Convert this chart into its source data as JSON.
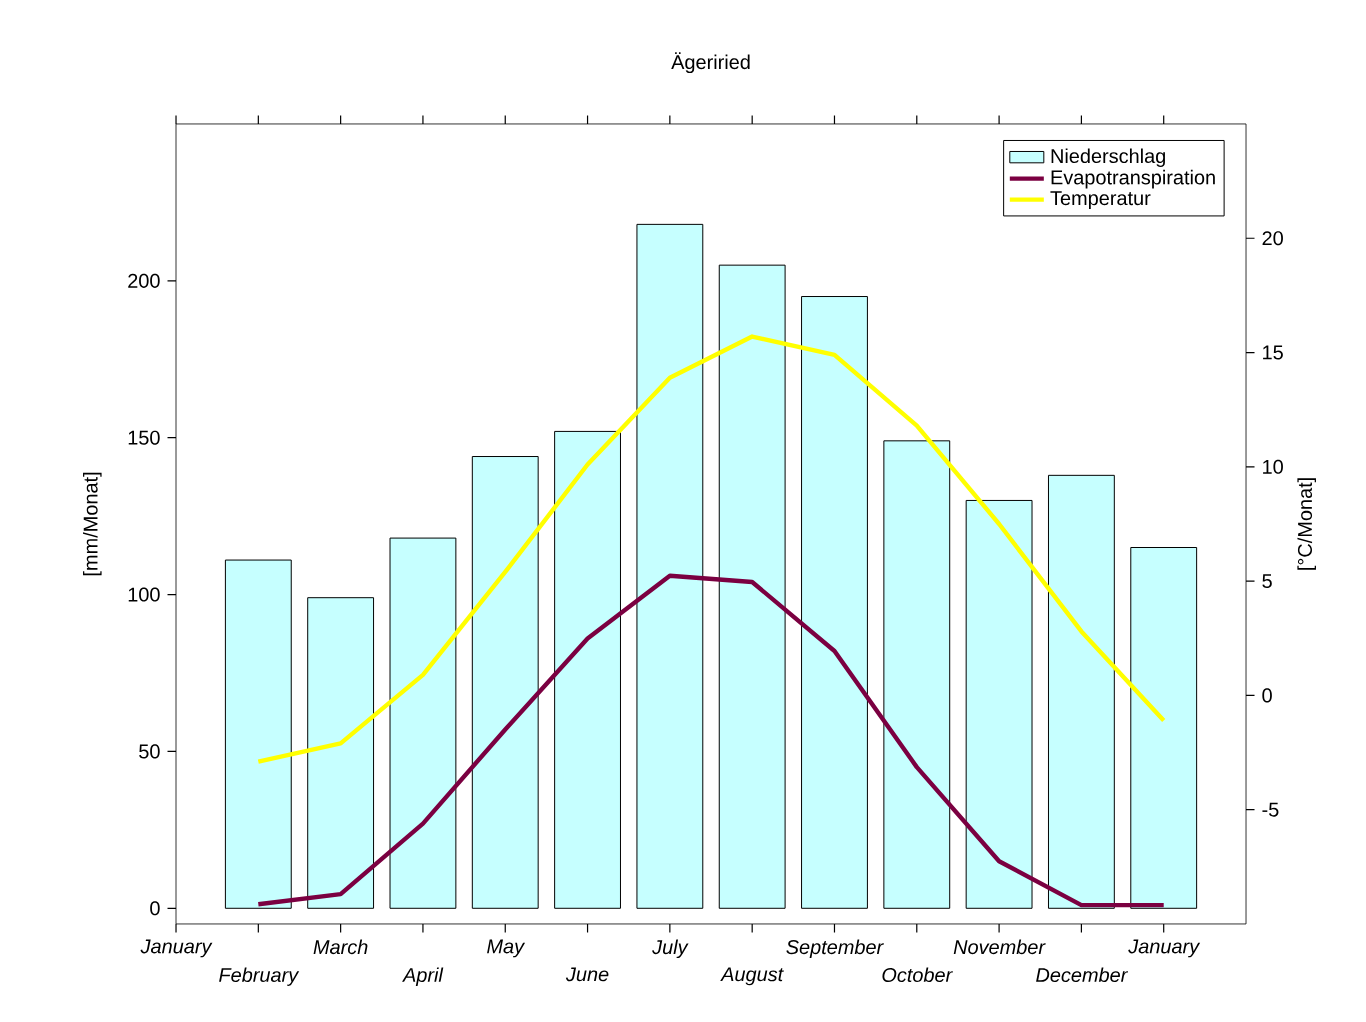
{
  "chart_data": {
    "type": "bar",
    "title": "Ägeriried",
    "ylabel": "[mm/Monat]",
    "y2label": "[°C/Monat]",
    "categories": [
      "January",
      "February",
      "March",
      "April",
      "May",
      "June",
      "July",
      "August",
      "September",
      "October",
      "November",
      "December",
      "January"
    ],
    "series": [
      {
        "name": "Niederschlag",
        "color": "#c6ffff",
        "values": [
          null,
          111,
          99,
          118,
          144,
          152,
          218,
          205,
          195,
          149,
          130,
          138,
          115
        ]
      },
      {
        "name": "Evapotranspiration",
        "type": "line",
        "color": "#7b0041",
        "values": [
          null,
          1.3,
          4.5,
          27,
          57,
          86,
          106,
          104,
          82,
          45,
          15,
          1,
          1
        ]
      },
      {
        "name": "Temperatur",
        "type": "line",
        "axis": "y2",
        "color": "#ffff00",
        "values": [
          null,
          -2.9,
          -2.1,
          0.9,
          5.4,
          10.1,
          13.9,
          15.7,
          14.9,
          11.8,
          7.5,
          2.8,
          -1.1
        ]
      }
    ],
    "ylim": [
      -5,
      250
    ],
    "yticks": [
      0,
      50,
      100,
      150,
      200
    ],
    "y2lim": [
      -10,
      25
    ],
    "y2ticks": [
      -5,
      0,
      5,
      10,
      15,
      20
    ],
    "legend": "top right",
    "marker": "none",
    "line_style": "solid"
  }
}
